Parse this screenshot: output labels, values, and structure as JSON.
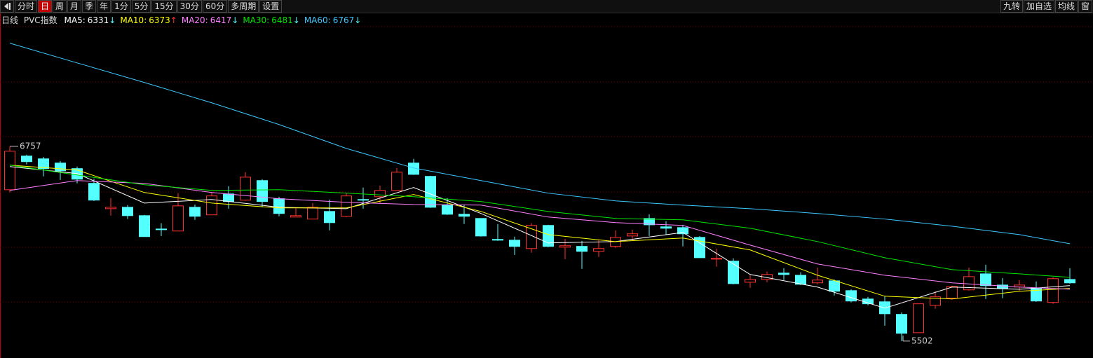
{
  "toolbar": {
    "left": [
      "分时",
      "日",
      "周",
      "月",
      "季",
      "年",
      "1分",
      "5分",
      "15分",
      "30分",
      "60分",
      "多周期",
      "设置"
    ],
    "selected": 1,
    "right": [
      "九转",
      "加自选",
      "均线",
      "窗"
    ]
  },
  "chart_data": {
    "type": "candlestick",
    "period": "日线",
    "title": "PVC指数",
    "ylim": [
      5420,
      7600
    ],
    "up_color": "#ff3232",
    "down_color": "#54ffff",
    "candles": [
      [
        6477,
        6757,
        6459,
        6725
      ],
      [
        6694,
        6703,
        6640,
        6658
      ],
      [
        6676,
        6689,
        6563,
        6613
      ],
      [
        6649,
        6662,
        6540,
        6599
      ],
      [
        6613,
        6626,
        6518,
        6545
      ],
      [
        6518,
        6549,
        6405,
        6410
      ],
      [
        6355,
        6423,
        6310,
        6364
      ],
      [
        6364,
        6378,
        6288,
        6310
      ],
      [
        6310,
        6315,
        6175,
        6175
      ],
      [
        6224,
        6261,
        6179,
        6220
      ],
      [
        6211,
        6455,
        6211,
        6373
      ],
      [
        6364,
        6382,
        6283,
        6306
      ],
      [
        6315,
        6464,
        6315,
        6437
      ],
      [
        6450,
        6500,
        6355,
        6401
      ],
      [
        6410,
        6590,
        6405,
        6558
      ],
      [
        6536,
        6545,
        6364,
        6401
      ],
      [
        6419,
        6432,
        6306,
        6324
      ],
      [
        6301,
        6364,
        6301,
        6310
      ],
      [
        6288,
        6391,
        6288,
        6364
      ],
      [
        6337,
        6414,
        6215,
        6265
      ],
      [
        6306,
        6455,
        6301,
        6437
      ],
      [
        6414,
        6491,
        6355,
        6410
      ],
      [
        6432,
        6504,
        6391,
        6473
      ],
      [
        6473,
        6617,
        6473,
        6590
      ],
      [
        6649,
        6676,
        6572,
        6576
      ],
      [
        6563,
        6567,
        6360,
        6364
      ],
      [
        6378,
        6423,
        6315,
        6319
      ],
      [
        6319,
        6382,
        6256,
        6306
      ],
      [
        6292,
        6292,
        6175,
        6179
      ],
      [
        6157,
        6256,
        6148,
        6152
      ],
      [
        6152,
        6175,
        6057,
        6112
      ],
      [
        6098,
        6261,
        6071,
        6247
      ],
      [
        6247,
        6251,
        6107,
        6112
      ],
      [
        6107,
        6161,
        6030,
        6116
      ],
      [
        6112,
        6148,
        5967,
        6080
      ],
      [
        6080,
        6157,
        6044,
        6098
      ],
      [
        6112,
        6215,
        6102,
        6170
      ],
      [
        6179,
        6220,
        6152,
        6193
      ],
      [
        6292,
        6319,
        6179,
        6251
      ],
      [
        6238,
        6274,
        6188,
        6229
      ],
      [
        6233,
        6251,
        6112,
        6193
      ],
      [
        6170,
        6179,
        6039,
        6039
      ],
      [
        6030,
        6098,
        5981,
        6035
      ],
      [
        6017,
        6035,
        5868,
        5872
      ],
      [
        5881,
        5926,
        5845,
        5899
      ],
      [
        5899,
        5949,
        5881,
        5931
      ],
      [
        5940,
        5972,
        5895,
        5931
      ],
      [
        5926,
        5945,
        5863,
        5868
      ],
      [
        5877,
        5976,
        5868,
        5895
      ],
      [
        5890,
        5899,
        5796,
        5823
      ],
      [
        5827,
        5836,
        5751,
        5760
      ],
      [
        5773,
        5787,
        5732,
        5742
      ],
      [
        5755,
        5791,
        5601,
        5678
      ],
      [
        5674,
        5687,
        5502,
        5552
      ],
      [
        5556,
        5742,
        5556,
        5742
      ],
      [
        5732,
        5823,
        5710,
        5787
      ],
      [
        5778,
        5859,
        5769,
        5854
      ],
      [
        5832,
        5976,
        5827,
        5917
      ],
      [
        5935,
        5994,
        5773,
        5859
      ],
      [
        5863,
        5908,
        5778,
        5841
      ],
      [
        5850,
        5895,
        5827,
        5863
      ],
      [
        5841,
        5886,
        5755,
        5760
      ],
      [
        5751,
        5913,
        5742,
        5904
      ],
      [
        5899,
        5972,
        5872,
        5877
      ]
    ],
    "x": [
      0,
      4,
      8,
      12,
      16,
      20,
      24,
      28,
      32,
      36,
      40,
      44,
      48,
      52,
      56,
      60,
      63
    ],
    "series": [
      {
        "name": "MA5:",
        "value": 6331,
        "trend": "↓",
        "color": "#ffffff",
        "values": [
          6626,
          6581,
          6391,
          6414,
          6364,
          6355,
          6491,
          6324,
          6134,
          6143,
          6202,
          5931,
          5850,
          5714,
          5850,
          5836,
          5859
        ]
      },
      {
        "name": "MA10:",
        "value": 6373,
        "trend": "↑",
        "color": "#ffff00",
        "values": [
          6635,
          6604,
          6459,
          6391,
          6360,
          6360,
          6446,
          6337,
          6188,
          6143,
          6166,
          6089,
          5926,
          5791,
          5773,
          5823,
          5841
        ]
      },
      {
        "name": "MA20:",
        "value": 6417,
        "trend": "↓",
        "color": "#ff80ff",
        "values": [
          6473,
          6536,
          6518,
          6459,
          6419,
          6396,
          6382,
          6378,
          6301,
          6265,
          6247,
          6120,
          5999,
          5926,
          5877,
          5850,
          5836
        ]
      },
      {
        "name": "MA30:",
        "value": 6481,
        "trend": "↓",
        "color": "#00e600",
        "values": [
          6635,
          6572,
          6509,
          6473,
          6477,
          6455,
          6432,
          6401,
          6337,
          6292,
          6283,
          6229,
          6143,
          6039,
          5962,
          5935,
          5913
        ]
      },
      {
        "name": "MA60:",
        "value": 6767,
        "trend": "↓",
        "color": "#3cc8ff",
        "values": [
          7421,
          7294,
          7168,
          7037,
          6897,
          6743,
          6617,
          6536,
          6455,
          6405,
          6378,
          6355,
          6324,
          6288,
          6242,
          6188,
          6129
        ]
      }
    ]
  }
}
